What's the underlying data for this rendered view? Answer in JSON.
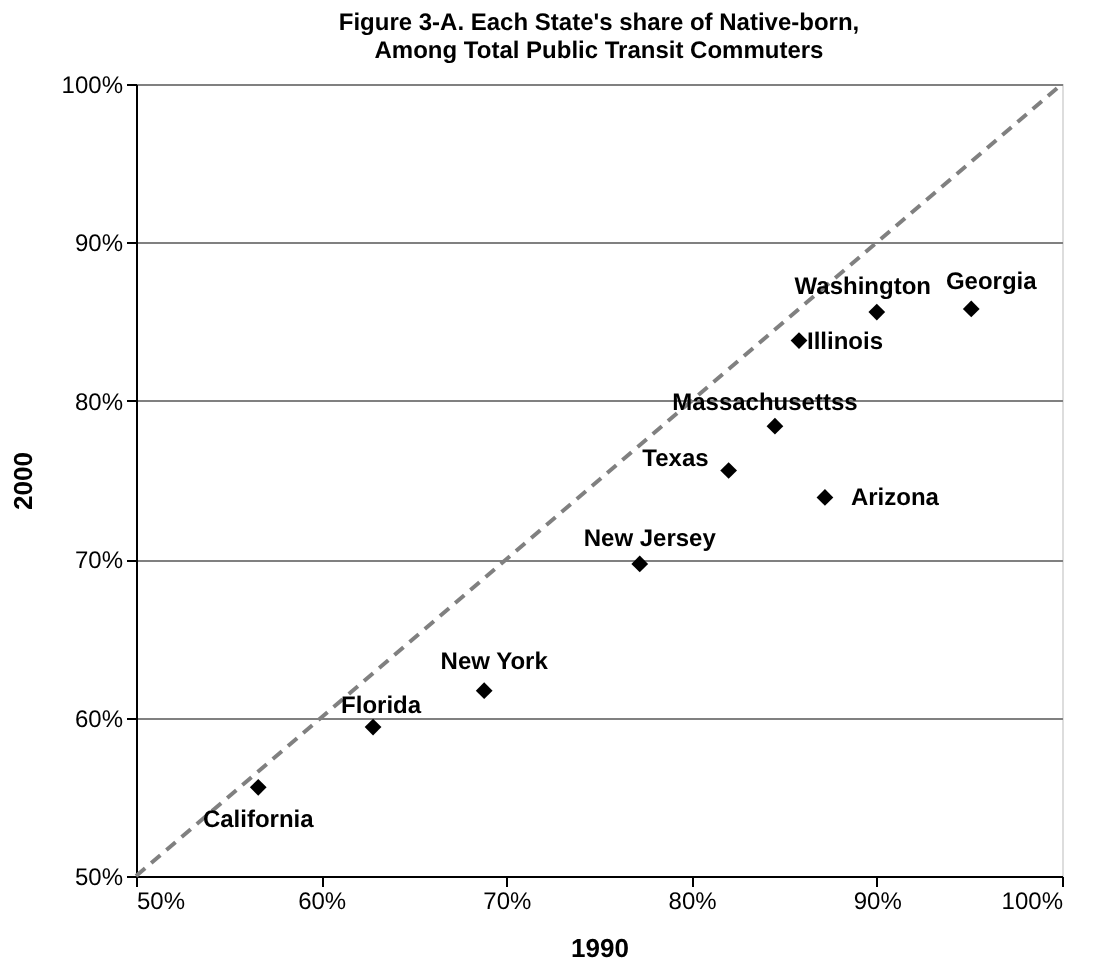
{
  "chart_data": {
    "type": "scatter",
    "title": "Figure 3-A. Each State's share of Native-born,",
    "subtitle": "Among Total Public Transit Commuters",
    "xlabel": "1990",
    "ylabel": "2000",
    "series": [
      {
        "type": "scatter",
        "color": "#000000",
        "marker": "diamond",
        "x": [
          56.6,
          62.8,
          68.8,
          77.2,
          82.0,
          87.2,
          84.5,
          85.8,
          90.0,
          95.1
        ],
        "values": [
          55.6,
          59.4,
          61.7,
          69.7,
          75.6,
          73.9,
          78.4,
          83.8,
          85.6,
          85.8
        ]
      },
      {
        "type": "line",
        "color": "#808080",
        "line_style": "dashed",
        "marker": "none",
        "x": [
          50,
          100
        ],
        "values": [
          50,
          100
        ]
      }
    ],
    "annotations": [
      {
        "text": "California",
        "x": 56.6,
        "y": 55.6
      },
      {
        "text": "Florida",
        "x": 62.8,
        "y": 59.4
      },
      {
        "text": "New York",
        "x": 68.8,
        "y": 61.7
      },
      {
        "text": "New Jersey",
        "x": 77.2,
        "y": 69.7
      },
      {
        "text": "Texas",
        "x": 82.0,
        "y": 75.6
      },
      {
        "text": "Arizona",
        "x": 87.2,
        "y": 73.9
      },
      {
        "text": "Massachusettss",
        "x": 84.5,
        "y": 78.4
      },
      {
        "text": "Illinois",
        "x": 85.8,
        "y": 83.8
      },
      {
        "text": "Washington",
        "x": 90.0,
        "y": 85.6
      },
      {
        "text": "Georgia",
        "x": 95.1,
        "y": 85.8
      }
    ],
    "xlim": [
      50,
      100
    ],
    "ylim": [
      50,
      100
    ],
    "xticks": [
      {
        "value": 50,
        "label": "50%"
      },
      {
        "value": 60,
        "label": "60%"
      },
      {
        "value": 70,
        "label": "70%"
      },
      {
        "value": 80,
        "label": "80%"
      },
      {
        "value": 90,
        "label": "90%"
      },
      {
        "value": 100,
        "label": "100%"
      }
    ],
    "yticks": [
      {
        "value": 50,
        "label": "50%"
      },
      {
        "value": 60,
        "label": "60%"
      },
      {
        "value": 70,
        "label": "70%"
      },
      {
        "value": 80,
        "label": "80%"
      },
      {
        "value": 90,
        "label": "90%"
      },
      {
        "value": 100,
        "label": "100%"
      }
    ],
    "grid": "y",
    "legend": false
  }
}
